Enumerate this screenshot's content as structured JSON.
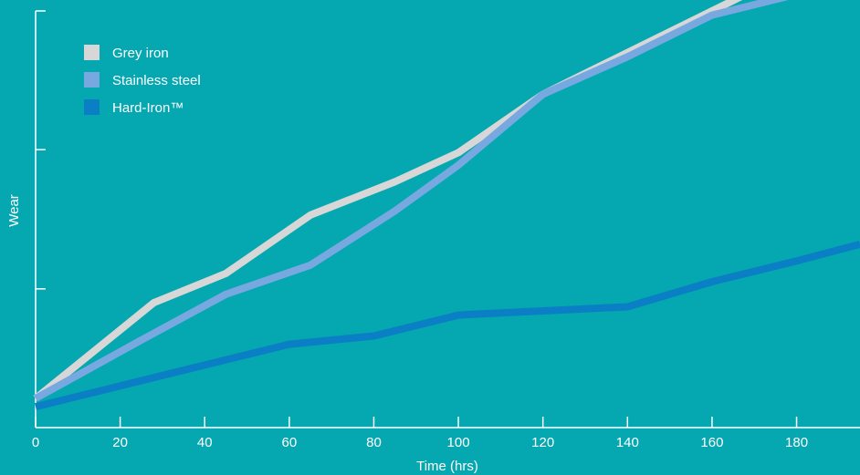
{
  "chart_data": {
    "type": "line",
    "xlabel": "Time (hrs)",
    "ylabel": "Wear",
    "xlim": [
      0,
      195
    ],
    "ylim": [
      0,
      100
    ],
    "x_ticks": [
      0,
      20,
      40,
      60,
      80,
      100,
      120,
      140,
      160,
      180
    ],
    "y_ticks": [
      33.3,
      66.7,
      100
    ],
    "grid": false,
    "legend_position": "top-left",
    "series": [
      {
        "name": "Grey iron",
        "color": "#d7d7d7",
        "x": [
          0,
          28,
          45,
          65,
          85,
          100,
          120,
          140,
          160,
          180,
          195
        ],
        "y": [
          7,
          30,
          37,
          51,
          59,
          66,
          80,
          90,
          100,
          110,
          116
        ]
      },
      {
        "name": "Stainless steel",
        "color": "#77a8e0",
        "x": [
          0,
          25,
          45,
          65,
          85,
          100,
          120,
          140,
          160,
          180,
          195
        ],
        "y": [
          7,
          21,
          32,
          39,
          52,
          63,
          80,
          89,
          99,
          104,
          107
        ]
      },
      {
        "name": "Hard-Iron™",
        "color": "#0a7fc5",
        "x": [
          0,
          20,
          40,
          60,
          80,
          100,
          120,
          140,
          160,
          180,
          195
        ],
        "y": [
          5,
          10,
          15,
          20,
          22,
          27,
          28,
          29,
          35,
          40,
          44
        ]
      }
    ]
  }
}
